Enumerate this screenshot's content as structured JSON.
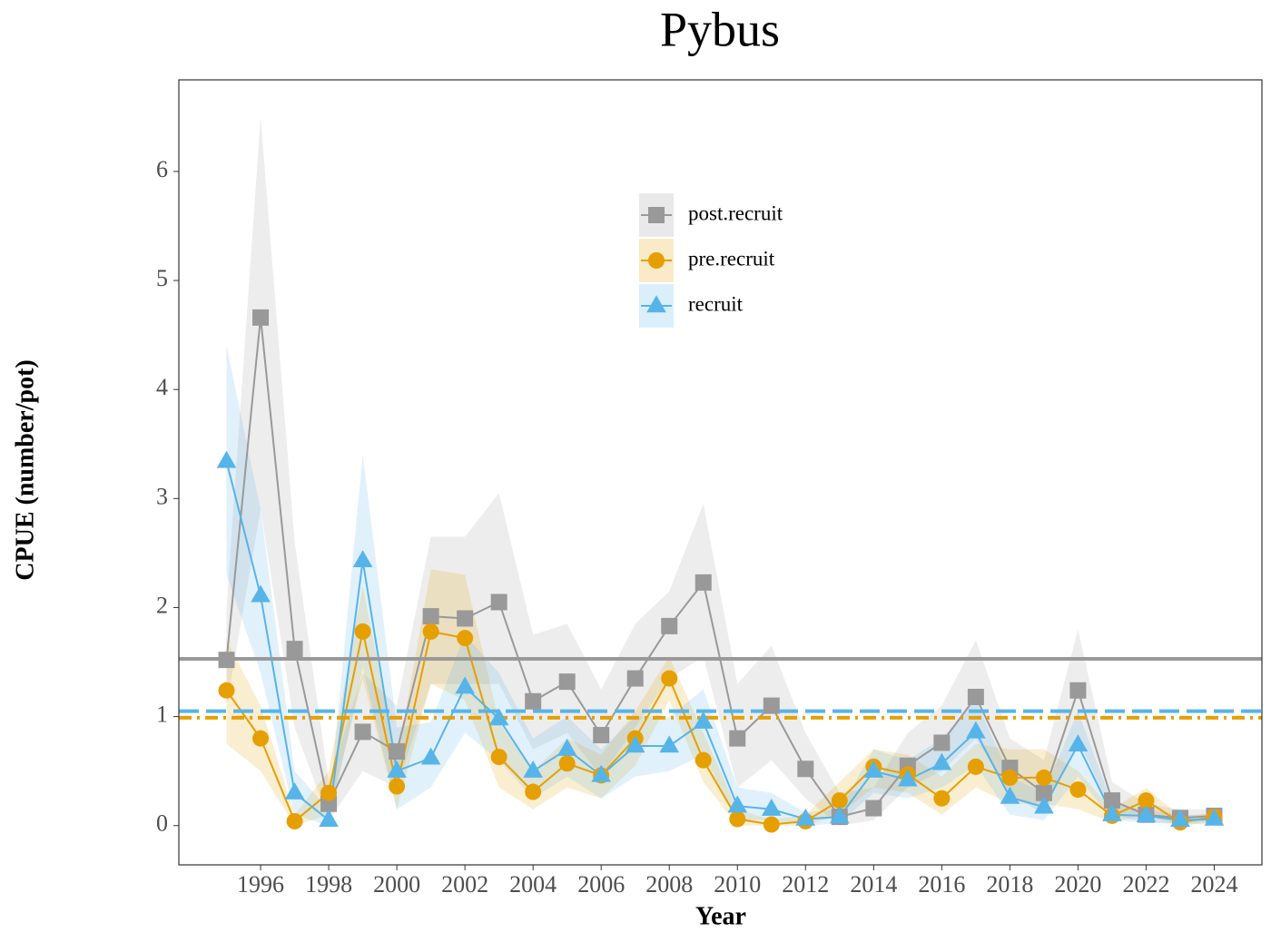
{
  "chart_data": {
    "type": "line",
    "title": "Pybus",
    "x_label": "Year",
    "y_label": "CPUE (number/pot)",
    "x": [
      1995,
      1996,
      1997,
      1998,
      1999,
      2000,
      2001,
      2002,
      2003,
      2004,
      2005,
      2006,
      2007,
      2008,
      2009,
      2010,
      2011,
      2012,
      2013,
      2014,
      2015,
      2016,
      2017,
      2018,
      2019,
      2020,
      2021,
      2022,
      2023,
      2024
    ],
    "xlim": [
      1993.6,
      2025.4
    ],
    "xticks": [
      1996,
      1998,
      2000,
      2002,
      2004,
      2006,
      2008,
      2010,
      2012,
      2014,
      2016,
      2018,
      2020,
      2022,
      2024
    ],
    "ylim": [
      -0.36,
      6.84
    ],
    "yticks": [
      0,
      1,
      2,
      3,
      4,
      5,
      6
    ],
    "grid": false,
    "series": [
      {
        "name": "post.recruit",
        "color": "#999999",
        "marker": "square",
        "mean_dash": "solid",
        "mean": 1.53,
        "values": [
          1.52,
          4.66,
          1.62,
          0.2,
          0.86,
          0.68,
          1.92,
          1.9,
          2.05,
          1.14,
          1.32,
          0.83,
          1.35,
          1.83,
          2.23,
          0.8,
          1.1,
          0.52,
          0.08,
          0.16,
          0.55,
          0.76,
          1.18,
          0.53,
          0.3,
          1.24,
          0.23,
          0.1,
          0.07,
          0.09
        ],
        "upper": [
          2.0,
          6.5,
          2.6,
          0.4,
          1.4,
          1.1,
          2.65,
          2.65,
          3.05,
          1.75,
          1.85,
          1.25,
          1.85,
          2.15,
          2.95,
          1.3,
          1.65,
          0.85,
          0.3,
          0.35,
          0.85,
          1.1,
          1.7,
          0.8,
          0.6,
          1.8,
          0.4,
          0.2,
          0.15,
          0.15
        ],
        "lower": [
          1.1,
          2.9,
          0.9,
          0.05,
          0.5,
          0.35,
          1.3,
          1.3,
          1.3,
          0.7,
          0.85,
          0.45,
          0.9,
          1.35,
          1.55,
          0.35,
          0.6,
          0.25,
          0,
          0.05,
          0.35,
          0.5,
          0.8,
          0.3,
          0.1,
          0.8,
          0.1,
          0.03,
          0.02,
          0.04
        ]
      },
      {
        "name": "pre.recruit",
        "color": "#E69F00",
        "marker": "circle",
        "mean_dash": "14 6 3 6",
        "mean": 0.99,
        "values": [
          1.24,
          0.8,
          0.04,
          0.3,
          1.78,
          0.36,
          1.78,
          1.72,
          0.63,
          0.31,
          0.57,
          0.46,
          0.8,
          1.35,
          0.6,
          0.06,
          0.01,
          0.04,
          0.23,
          0.54,
          0.47,
          0.25,
          0.54,
          0.44,
          0.44,
          0.33,
          0.09,
          0.23,
          0.03,
          0.08
        ],
        "upper": [
          1.7,
          1.1,
          0.1,
          0.5,
          2.2,
          0.6,
          2.35,
          2.3,
          0.95,
          0.5,
          0.8,
          0.65,
          1.05,
          1.55,
          0.85,
          0.15,
          0.05,
          0.1,
          0.4,
          0.7,
          0.65,
          0.45,
          0.75,
          0.7,
          0.7,
          0.5,
          0.15,
          0.35,
          0.08,
          0.12
        ],
        "lower": [
          0.75,
          0.5,
          0,
          0.1,
          1.35,
          0.15,
          1.3,
          1.15,
          0.35,
          0.15,
          0.35,
          0.25,
          0.55,
          1.15,
          0.4,
          0,
          0,
          0,
          0.1,
          0.35,
          0.3,
          0.1,
          0.35,
          0.2,
          0.2,
          0.15,
          0.03,
          0.1,
          0,
          0.03
        ]
      },
      {
        "name": "recruit",
        "color": "#56B4E9",
        "marker": "triangle",
        "mean_dash": "22 8",
        "mean": 1.05,
        "values": [
          3.34,
          2.11,
          0.3,
          0.05,
          2.43,
          0.5,
          0.62,
          1.27,
          0.98,
          0.5,
          0.7,
          0.46,
          0.73,
          0.73,
          0.95,
          0.18,
          0.15,
          0.06,
          0.08,
          0.5,
          0.42,
          0.57,
          0.86,
          0.26,
          0.17,
          0.74,
          0.1,
          0.09,
          0.05,
          0.06
        ],
        "upper": [
          4.4,
          2.9,
          0.5,
          0.15,
          3.4,
          0.9,
          0.95,
          1.75,
          1.4,
          0.8,
          1.0,
          0.7,
          1.0,
          1.0,
          1.25,
          0.35,
          0.3,
          0.12,
          0.15,
          0.7,
          0.6,
          0.8,
          1.15,
          0.45,
          0.3,
          1.05,
          0.2,
          0.15,
          0.1,
          0.1
        ],
        "lower": [
          2.3,
          1.4,
          0.1,
          0,
          1.45,
          0.15,
          0.35,
          0.85,
          0.6,
          0.25,
          0.45,
          0.25,
          0.45,
          0.5,
          0.65,
          0.05,
          0.05,
          0,
          0.02,
          0.3,
          0.25,
          0.35,
          0.55,
          0.1,
          0.05,
          0.45,
          0.05,
          0.03,
          0.01,
          0.02
        ]
      }
    ]
  }
}
